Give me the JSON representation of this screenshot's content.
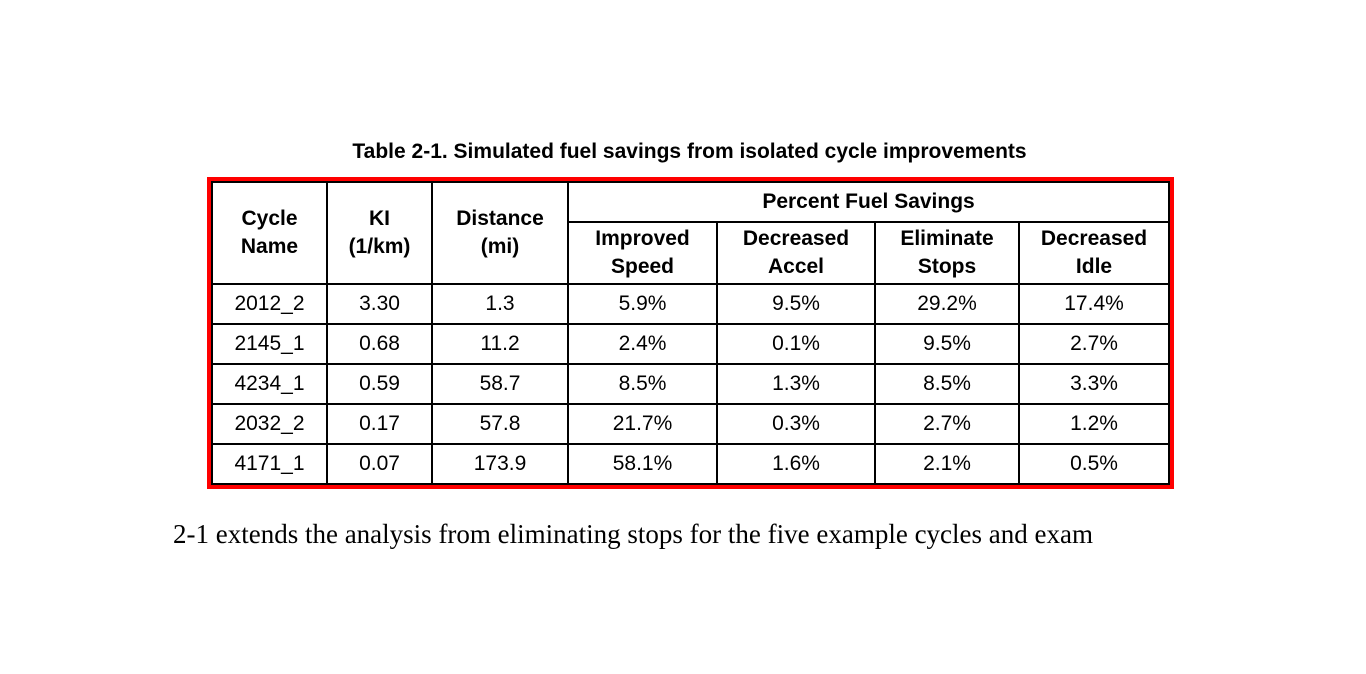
{
  "title": "Table 2-1. Simulated fuel savings from isolated cycle improvements",
  "table": {
    "headers": {
      "cycle_name": "Cycle\nName",
      "ki": "KI\n(1/km)",
      "distance": "Distance\n(mi)",
      "percent_fuel_savings": "Percent Fuel Savings",
      "sub": [
        "Improved\nSpeed",
        "Decreased\nAccel",
        "Eliminate\nStops",
        "Decreased\nIdle"
      ]
    },
    "rows": [
      [
        "2012_2",
        "3.30",
        "1.3",
        "5.9%",
        "9.5%",
        "29.2%",
        "17.4%"
      ],
      [
        "2145_1",
        "0.68",
        "11.2",
        "2.4%",
        "0.1%",
        "9.5%",
        "2.7%"
      ],
      [
        "4234_1",
        "0.59",
        "58.7",
        "8.5%",
        "1.3%",
        "8.5%",
        "3.3%"
      ],
      [
        "2032_2",
        "0.17",
        "57.8",
        "21.7%",
        "0.3%",
        "2.7%",
        "1.2%"
      ],
      [
        "4171_1",
        "0.07",
        "173.9",
        "58.1%",
        "1.6%",
        "2.1%",
        "0.5%"
      ]
    ]
  },
  "body_text": "2-1 extends the analysis from eliminating stops for the five example cycles and exam",
  "colors": {
    "table_outline": "#ff0000",
    "grid": "#000000",
    "text": "#000000",
    "background": "#ffffff"
  }
}
